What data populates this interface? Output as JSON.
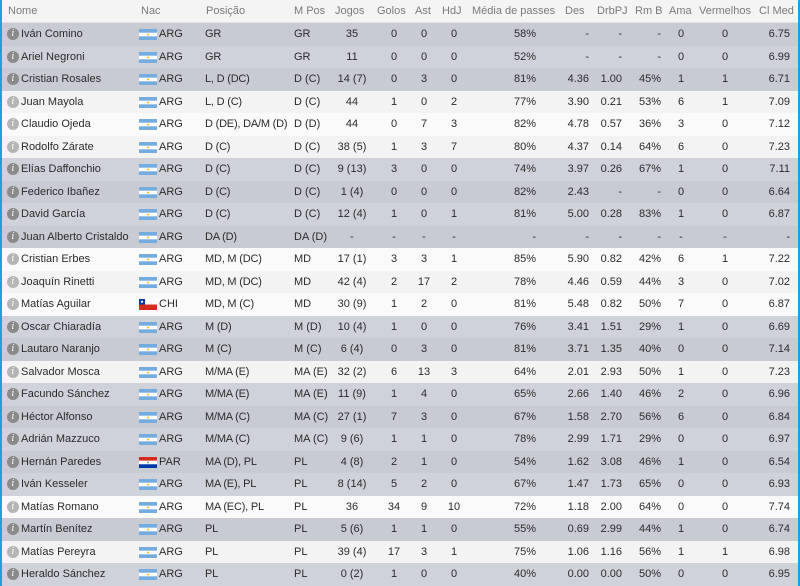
{
  "colors": {
    "accent": "#1ea0e6",
    "row_dark": "#c8cbd2",
    "row_light": "#f3f3f3"
  },
  "columns": [
    "Nome",
    "Nac",
    "Posição",
    "M Pos",
    "Jogos",
    "Golos",
    "Ast",
    "HdJ",
    "Média de passes",
    "Des",
    "DrbPJ",
    "Rm B",
    "Ama",
    "Vermelhos",
    "Cl Med"
  ],
  "rows": [
    {
      "highlight": false,
      "flag": "ARG",
      "cells": [
        "Iván Comino",
        "ARG",
        "GR",
        "GR",
        "35",
        "0",
        "0",
        "0",
        "58%",
        "-",
        "-",
        "-",
        "0",
        "0",
        "6.75"
      ]
    },
    {
      "highlight": false,
      "flag": "ARG",
      "cells": [
        "Ariel Negroni",
        "ARG",
        "GR",
        "GR",
        "11",
        "0",
        "0",
        "0",
        "52%",
        "-",
        "-",
        "-",
        "0",
        "0",
        "6.99"
      ]
    },
    {
      "highlight": false,
      "flag": "ARG",
      "cells": [
        "Cristian Rosales",
        "ARG",
        "L, D (DC)",
        "D (C)",
        "14 (7)",
        "0",
        "3",
        "0",
        "81%",
        "4.36",
        "1.00",
        "45%",
        "1",
        "1",
        "6.71"
      ]
    },
    {
      "highlight": true,
      "flag": "ARG",
      "cells": [
        "Juan Mayola",
        "ARG",
        "L, D (C)",
        "D (C)",
        "44",
        "1",
        "0",
        "2",
        "77%",
        "3.90",
        "0.21",
        "53%",
        "6",
        "1",
        "7.09"
      ]
    },
    {
      "highlight": true,
      "flag": "ARG",
      "cells": [
        "Claudio Ojeda",
        "ARG",
        "D (DE), DA/M (D)",
        "D (D)",
        "44",
        "0",
        "7",
        "3",
        "82%",
        "4.78",
        "0.57",
        "36%",
        "3",
        "0",
        "7.12"
      ]
    },
    {
      "highlight": true,
      "flag": "ARG",
      "cells": [
        "Rodolfo Zárate",
        "ARG",
        "D (C)",
        "D (C)",
        "38 (5)",
        "1",
        "3",
        "7",
        "80%",
        "4.37",
        "0.14",
        "64%",
        "6",
        "0",
        "7.23"
      ]
    },
    {
      "highlight": false,
      "flag": "ARG",
      "cells": [
        "Elías Daffonchio",
        "ARG",
        "D (C)",
        "D (C)",
        "9 (13)",
        "3",
        "0",
        "0",
        "74%",
        "3.97",
        "0.26",
        "67%",
        "1",
        "0",
        "7.11"
      ]
    },
    {
      "highlight": false,
      "flag": "ARG",
      "cells": [
        "Federico Ibañez",
        "ARG",
        "D (C)",
        "D (C)",
        "1 (4)",
        "0",
        "0",
        "0",
        "82%",
        "2.43",
        "-",
        "-",
        "0",
        "0",
        "6.64"
      ]
    },
    {
      "highlight": false,
      "flag": "ARG",
      "cells": [
        "David García",
        "ARG",
        "D (C)",
        "D (C)",
        "12 (4)",
        "1",
        "0",
        "1",
        "81%",
        "5.00",
        "0.28",
        "83%",
        "1",
        "0",
        "6.87"
      ]
    },
    {
      "highlight": false,
      "flag": "ARG",
      "cells": [
        "Juan Alberto Cristaldo",
        "ARG",
        "DA (D)",
        "DA (D)",
        "-",
        "-",
        "-",
        "-",
        "-",
        "-",
        "-",
        "-",
        "-",
        "-",
        "-"
      ]
    },
    {
      "highlight": true,
      "flag": "ARG",
      "cells": [
        "Cristian Erbes",
        "ARG",
        "MD, M (DC)",
        "MD",
        "17 (1)",
        "3",
        "3",
        "1",
        "85%",
        "5.90",
        "0.82",
        "42%",
        "6",
        "1",
        "7.22"
      ]
    },
    {
      "highlight": true,
      "flag": "ARG",
      "cells": [
        "Joaquín Rinetti",
        "ARG",
        "MD, M (DC)",
        "MD",
        "42 (4)",
        "2",
        "17",
        "2",
        "78%",
        "4.46",
        "0.59",
        "44%",
        "3",
        "0",
        "7.02"
      ]
    },
    {
      "highlight": true,
      "flag": "CHI",
      "cells": [
        "Matías Aguilar",
        "CHI",
        "MD, M (C)",
        "MD",
        "30 (9)",
        "1",
        "2",
        "0",
        "81%",
        "5.48",
        "0.82",
        "50%",
        "7",
        "0",
        "6.87"
      ]
    },
    {
      "highlight": false,
      "flag": "ARG",
      "cells": [
        "Oscar Chiaradía",
        "ARG",
        "M (D)",
        "M (D)",
        "10 (4)",
        "1",
        "0",
        "0",
        "76%",
        "3.41",
        "1.51",
        "29%",
        "1",
        "0",
        "6.69"
      ]
    },
    {
      "highlight": false,
      "flag": "ARG",
      "cells": [
        "Lautaro Naranjo",
        "ARG",
        "M (C)",
        "M (C)",
        "6 (4)",
        "0",
        "3",
        "0",
        "81%",
        "3.71",
        "1.35",
        "40%",
        "0",
        "0",
        "7.14"
      ]
    },
    {
      "highlight": true,
      "flag": "ARG",
      "cells": [
        "Salvador Mosca",
        "ARG",
        "M/MA (E)",
        "MA (E)",
        "32 (2)",
        "6",
        "13",
        "3",
        "64%",
        "2.01",
        "2.93",
        "50%",
        "1",
        "0",
        "7.23"
      ]
    },
    {
      "highlight": false,
      "flag": "ARG",
      "cells": [
        "Facundo Sánchez",
        "ARG",
        "M/MA (E)",
        "MA (E)",
        "11 (9)",
        "1",
        "4",
        "0",
        "65%",
        "2.66",
        "1.40",
        "46%",
        "2",
        "0",
        "6.96"
      ]
    },
    {
      "highlight": false,
      "flag": "ARG",
      "cells": [
        "Héctor Alfonso",
        "ARG",
        "M/MA (C)",
        "MA (C)",
        "27 (1)",
        "7",
        "3",
        "0",
        "67%",
        "1.58",
        "2.70",
        "56%",
        "6",
        "0",
        "6.84"
      ]
    },
    {
      "highlight": false,
      "flag": "ARG",
      "cells": [
        "Adrián Mazzuco",
        "ARG",
        "M/MA (C)",
        "MA (C)",
        "9 (6)",
        "1",
        "1",
        "0",
        "78%",
        "2.99",
        "1.71",
        "29%",
        "0",
        "0",
        "6.97"
      ]
    },
    {
      "highlight": false,
      "flag": "PAR",
      "cells": [
        "Hernán Paredes",
        "PAR",
        "MA (D), PL",
        "PL",
        "4 (8)",
        "2",
        "1",
        "0",
        "54%",
        "1.62",
        "3.08",
        "46%",
        "1",
        "0",
        "6.54"
      ]
    },
    {
      "highlight": false,
      "flag": "ARG",
      "cells": [
        "Iván Kesseler",
        "ARG",
        "MA (E), PL",
        "PL",
        "8 (14)",
        "5",
        "2",
        "0",
        "67%",
        "1.47",
        "1.73",
        "65%",
        "0",
        "0",
        "6.93"
      ]
    },
    {
      "highlight": true,
      "flag": "ARG",
      "cells": [
        "Matías Romano",
        "ARG",
        "MA (EC), PL",
        "PL",
        "36",
        "34",
        "9",
        "10",
        "72%",
        "1.18",
        "2.00",
        "64%",
        "0",
        "0",
        "7.74"
      ]
    },
    {
      "highlight": false,
      "flag": "ARG",
      "cells": [
        "Martín Benítez",
        "ARG",
        "PL",
        "PL",
        "5 (6)",
        "1",
        "1",
        "0",
        "55%",
        "0.69",
        "2.99",
        "44%",
        "1",
        "0",
        "6.74"
      ]
    },
    {
      "highlight": true,
      "flag": "ARG",
      "cells": [
        "Matías Pereyra",
        "ARG",
        "PL",
        "PL",
        "39 (4)",
        "17",
        "3",
        "1",
        "75%",
        "1.06",
        "1.16",
        "56%",
        "1",
        "1",
        "6.98"
      ]
    },
    {
      "highlight": false,
      "flag": "ARG",
      "cells": [
        "Heraldo Sánchez",
        "ARG",
        "PL",
        "PL",
        "0 (2)",
        "1",
        "0",
        "0",
        "40%",
        "0.00",
        "0.00",
        "50%",
        "0",
        "0",
        "6.95"
      ]
    }
  ]
}
